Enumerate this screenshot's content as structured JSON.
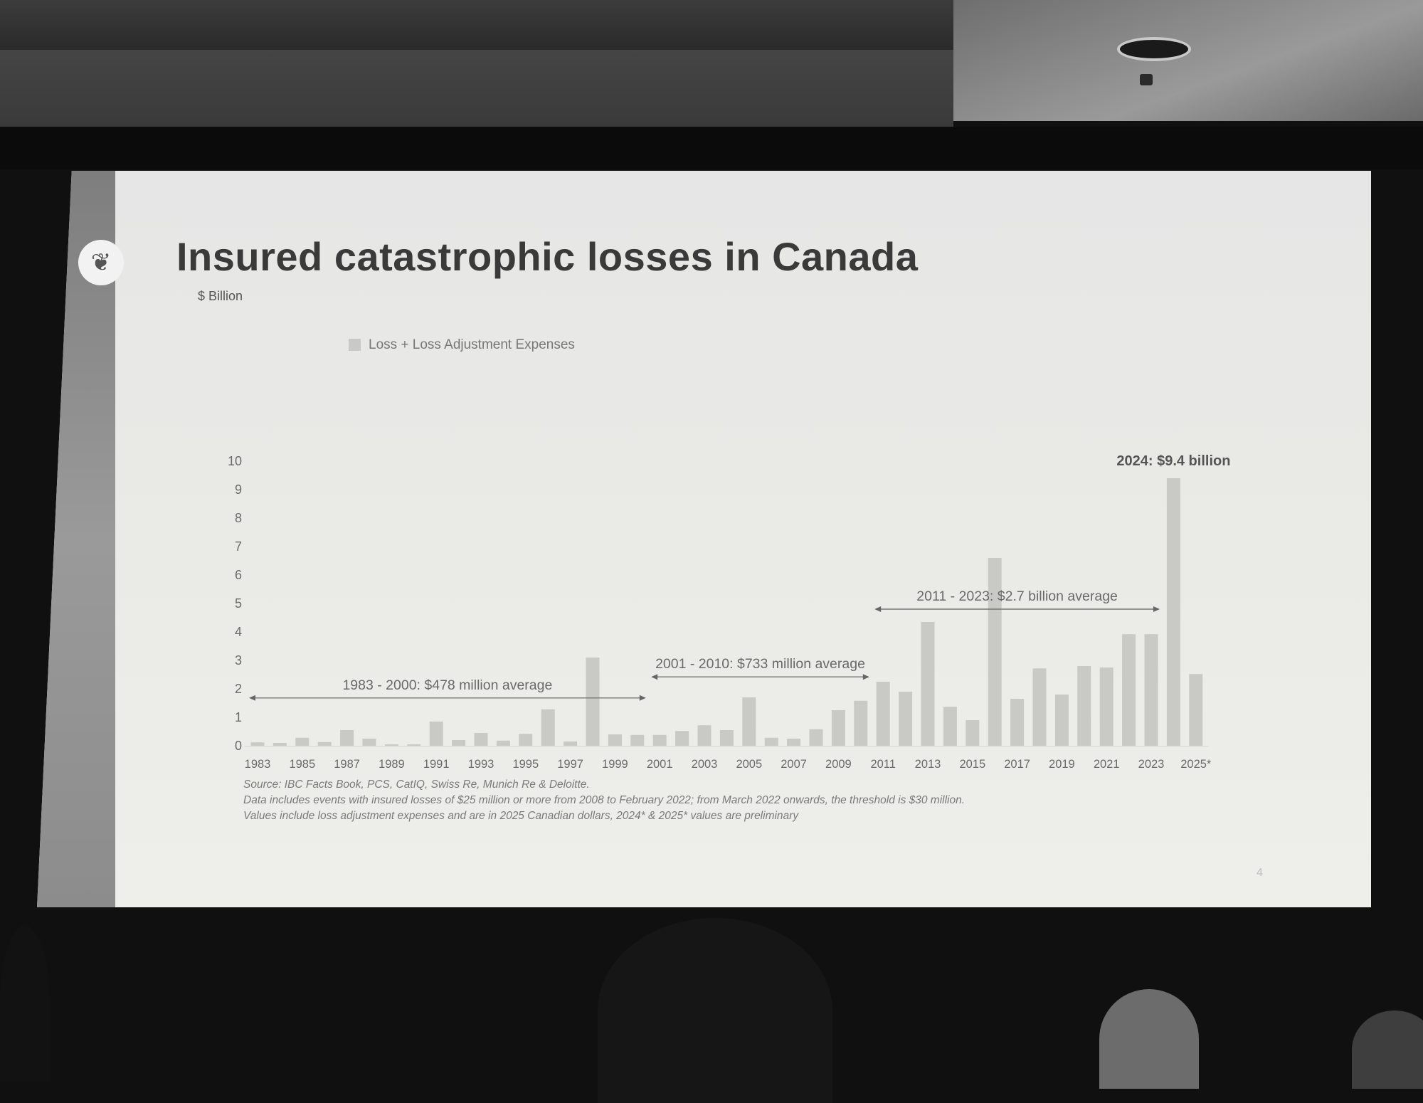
{
  "slide": {
    "title": "Insured catastrophic losses in Canada",
    "logo_icon": "maple-leaf-icon",
    "page_number": "4",
    "footnotes": [
      "Source: IBC Facts Book, PCS, CatIQ, Swiss Re, Munich Re & Deloitte.",
      "Data includes events with insured losses of $25 million or more from 2008 to February 2022; from March 2022 onwards, the threshold is $30 million.",
      "Values include loss adjustment expenses and are in 2025 Canadian dollars, 2024* & 2025* values are preliminary"
    ]
  },
  "chart_data": {
    "type": "bar",
    "title": "",
    "ylabel": "$ Billion",
    "xlabel": "",
    "ylim": [
      0,
      10
    ],
    "y_ticks": [
      "0",
      "1",
      "2",
      "3",
      "4",
      "5",
      "6",
      "7",
      "8",
      "9",
      "10"
    ],
    "categories": [
      "1983",
      "1984",
      "1985",
      "1986",
      "1987",
      "1988",
      "1989",
      "1990",
      "1991",
      "1992",
      "1993",
      "1994",
      "1995",
      "1996",
      "1997",
      "1998",
      "1999",
      "2000",
      "2001",
      "2002",
      "2003",
      "2004",
      "2005",
      "2006",
      "2007",
      "2008",
      "2009",
      "2010",
      "2011",
      "2012",
      "2013",
      "2014",
      "2015",
      "2016",
      "2017",
      "2018",
      "2019",
      "2020",
      "2021",
      "2022",
      "2023",
      "2024",
      "2025"
    ],
    "x_tick_labels": [
      "1983",
      "1985",
      "1987",
      "1989",
      "1991",
      "1993",
      "1995",
      "1997",
      "1999",
      "2001",
      "2003",
      "2005",
      "2007",
      "2009",
      "2011",
      "2013",
      "2015",
      "2017",
      "2019",
      "2021",
      "2023",
      "2025*"
    ],
    "series": [
      {
        "name": "Loss + Loss Adjustment Expenses",
        "values": [
          0.12,
          0.1,
          0.28,
          0.13,
          0.55,
          0.25,
          0.03,
          0.03,
          0.85,
          0.2,
          0.45,
          0.18,
          0.42,
          1.28,
          0.15,
          3.1,
          0.4,
          0.38,
          0.38,
          0.52,
          0.72,
          0.55,
          1.7,
          0.28,
          0.25,
          0.58,
          1.25,
          1.58,
          2.25,
          1.9,
          4.35,
          1.37,
          0.9,
          6.6,
          1.65,
          2.72,
          1.8,
          2.8,
          2.75,
          3.92,
          3.92,
          9.4,
          2.52
        ]
      }
    ],
    "bar_color": "#c9c9c5",
    "legend": "top-left",
    "grid": false,
    "annotations": [
      {
        "text": "1983 - 2000:  $478 million average",
        "from": "1983",
        "to": "2000",
        "level": 1.68
      },
      {
        "text": "2001 - 2010:  $733 million average",
        "from": "2001",
        "to": "2010",
        "level": 2.42
      },
      {
        "text": "2011 - 2023:  $2.7 billion average",
        "from": "2011",
        "to": "2023",
        "level": 4.8
      },
      {
        "text": "2024: $9.4 billion",
        "at": "2024",
        "level": 9.65
      }
    ]
  }
}
